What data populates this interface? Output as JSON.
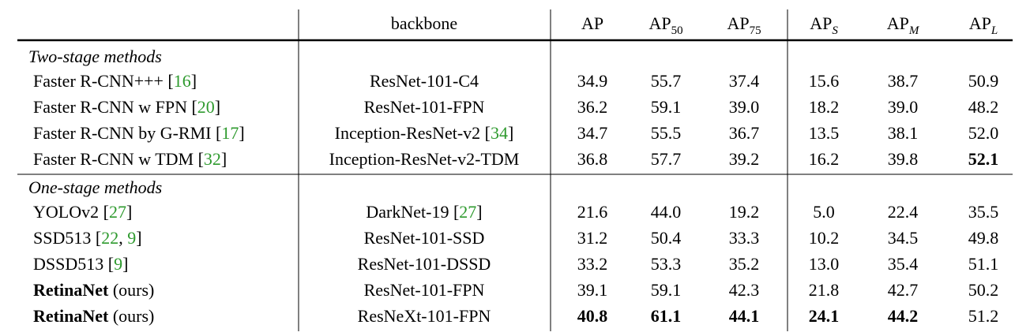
{
  "header": [
    {
      "base": "backbone"
    },
    {
      "base": "AP"
    },
    {
      "base": "AP",
      "sub": "50"
    },
    {
      "base": "AP",
      "sub": "75"
    },
    {
      "base": "AP",
      "sub": "S",
      "italic": true
    },
    {
      "base": "AP",
      "sub": "M",
      "italic": true
    },
    {
      "base": "AP",
      "sub": "L",
      "italic": true
    }
  ],
  "groups": [
    {
      "label": "Two-stage methods",
      "rows": [
        {
          "method": [
            {
              "text": "Faster R-CNN+++ ["
            },
            {
              "text": "16",
              "cite": true
            },
            {
              "text": "]"
            }
          ],
          "backbone": [
            {
              "text": "ResNet-101-C4"
            }
          ],
          "values": [
            "34.9",
            "55.7",
            "37.4",
            "15.6",
            "38.7",
            "50.9"
          ],
          "bold": []
        },
        {
          "method": [
            {
              "text": "Faster R-CNN w FPN ["
            },
            {
              "text": "20",
              "cite": true
            },
            {
              "text": "]"
            }
          ],
          "backbone": [
            {
              "text": "ResNet-101-FPN"
            }
          ],
          "values": [
            "36.2",
            "59.1",
            "39.0",
            "18.2",
            "39.0",
            "48.2"
          ],
          "bold": []
        },
        {
          "method": [
            {
              "text": "Faster R-CNN by G-RMI ["
            },
            {
              "text": "17",
              "cite": true
            },
            {
              "text": "]"
            }
          ],
          "backbone": [
            {
              "text": "Inception-ResNet-v2 ["
            },
            {
              "text": "34",
              "cite": true
            },
            {
              "text": "]"
            }
          ],
          "values": [
            "34.7",
            "55.5",
            "36.7",
            "13.5",
            "38.1",
            "52.0"
          ],
          "bold": []
        },
        {
          "method": [
            {
              "text": "Faster R-CNN w TDM ["
            },
            {
              "text": "32",
              "cite": true
            },
            {
              "text": "]"
            }
          ],
          "backbone": [
            {
              "text": "Inception-ResNet-v2-TDM"
            }
          ],
          "values": [
            "36.8",
            "57.7",
            "39.2",
            "16.2",
            "39.8",
            "52.1"
          ],
          "bold": [
            5
          ]
        }
      ]
    },
    {
      "label": "One-stage methods",
      "rows": [
        {
          "method": [
            {
              "text": "YOLOv2 ["
            },
            {
              "text": "27",
              "cite": true
            },
            {
              "text": "]"
            }
          ],
          "backbone": [
            {
              "text": "DarkNet-19 ["
            },
            {
              "text": "27",
              "cite": true
            },
            {
              "text": "]"
            }
          ],
          "values": [
            "21.6",
            "44.0",
            "19.2",
            "5.0",
            "22.4",
            "35.5"
          ],
          "bold": []
        },
        {
          "method": [
            {
              "text": "SSD513 ["
            },
            {
              "text": "22",
              "cite": true
            },
            {
              "text": ", "
            },
            {
              "text": "9",
              "cite": true
            },
            {
              "text": "]"
            }
          ],
          "backbone": [
            {
              "text": "ResNet-101-SSD"
            }
          ],
          "values": [
            "31.2",
            "50.4",
            "33.3",
            "10.2",
            "34.5",
            "49.8"
          ],
          "bold": []
        },
        {
          "method": [
            {
              "text": "DSSD513 ["
            },
            {
              "text": "9",
              "cite": true
            },
            {
              "text": "]"
            }
          ],
          "backbone": [
            {
              "text": "ResNet-101-DSSD"
            }
          ],
          "values": [
            "33.2",
            "53.3",
            "35.2",
            "13.0",
            "35.4",
            "51.1"
          ],
          "bold": []
        },
        {
          "method": [
            {
              "text": "RetinaNet",
              "bold": true
            },
            {
              "text": " (ours)"
            }
          ],
          "backbone": [
            {
              "text": "ResNet-101-FPN"
            }
          ],
          "values": [
            "39.1",
            "59.1",
            "42.3",
            "21.8",
            "42.7",
            "50.2"
          ],
          "bold": []
        },
        {
          "method": [
            {
              "text": "RetinaNet",
              "bold": true
            },
            {
              "text": " (ours)"
            }
          ],
          "backbone": [
            {
              "text": "ResNeXt-101-FPN"
            }
          ],
          "values": [
            "40.8",
            "61.1",
            "44.1",
            "24.1",
            "44.2",
            "51.2"
          ],
          "bold": [
            0,
            1,
            2,
            3,
            4
          ]
        }
      ]
    }
  ]
}
